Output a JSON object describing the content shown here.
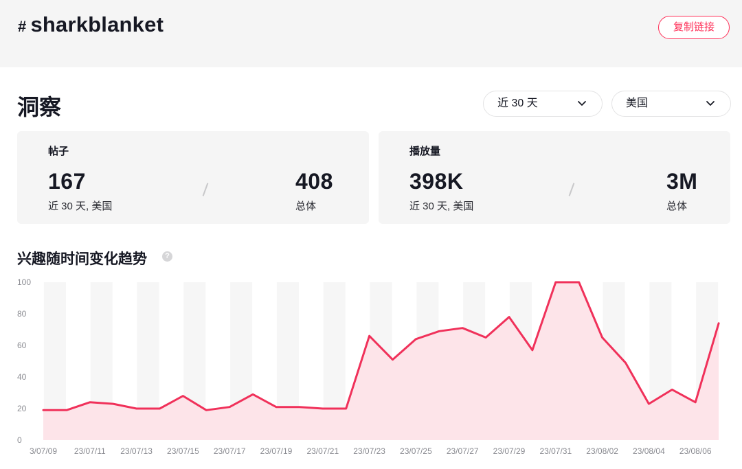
{
  "header": {
    "hash": "#",
    "tag": "sharkblanket",
    "copy_link": "复制链接"
  },
  "insights": {
    "title": "洞察",
    "period_select": "近 30 天",
    "region_select": "美国"
  },
  "cards": {
    "posts": {
      "label": "帖子",
      "recent_value": "167",
      "recent_caption": "近 30 天, 美国",
      "total_value": "408",
      "total_caption": "总体"
    },
    "views": {
      "label": "播放量",
      "recent_value": "398K",
      "recent_caption": "近 30 天, 美国",
      "total_value": "3M",
      "total_caption": "总体"
    }
  },
  "trend": {
    "title": "兴趣随时间变化趋势",
    "help_icon": "question-icon"
  },
  "colors": {
    "accent": "#fe2c55",
    "line": "#f0315a",
    "area": "#fde4e9",
    "band": "#f6f6f6"
  },
  "chart_data": {
    "type": "area",
    "title": "兴趣随时间变化趋势",
    "xlabel": "",
    "ylabel": "",
    "ylim": [
      0,
      100
    ],
    "yticks": [
      0,
      20,
      40,
      60,
      80,
      100
    ],
    "grid": "alternating vertical bands",
    "x": [
      "23/07/09",
      "23/07/10",
      "23/07/11",
      "23/07/12",
      "23/07/13",
      "23/07/14",
      "23/07/15",
      "23/07/16",
      "23/07/17",
      "23/07/18",
      "23/07/19",
      "23/07/20",
      "23/07/21",
      "23/07/22",
      "23/07/23",
      "23/07/24",
      "23/07/25",
      "23/07/26",
      "23/07/27",
      "23/07/28",
      "23/07/29",
      "23/07/30",
      "23/07/31",
      "23/08/01",
      "23/08/02",
      "23/08/03",
      "23/08/04",
      "23/08/05",
      "23/08/06",
      "23/08/07"
    ],
    "xtick_labels": [
      "3/07/09",
      "23/07/11",
      "23/07/13",
      "23/07/15",
      "23/07/17",
      "23/07/19",
      "23/07/21",
      "23/07/23",
      "23/07/25",
      "23/07/27",
      "23/07/29",
      "23/07/31",
      "23/08/02",
      "23/08/04",
      "23/08/06"
    ],
    "values": [
      19,
      19,
      24,
      23,
      20,
      20,
      28,
      19,
      21,
      29,
      21,
      21,
      20,
      20,
      66,
      51,
      64,
      69,
      71,
      65,
      78,
      57,
      103,
      101,
      65,
      49,
      23,
      32,
      24,
      74
    ]
  }
}
